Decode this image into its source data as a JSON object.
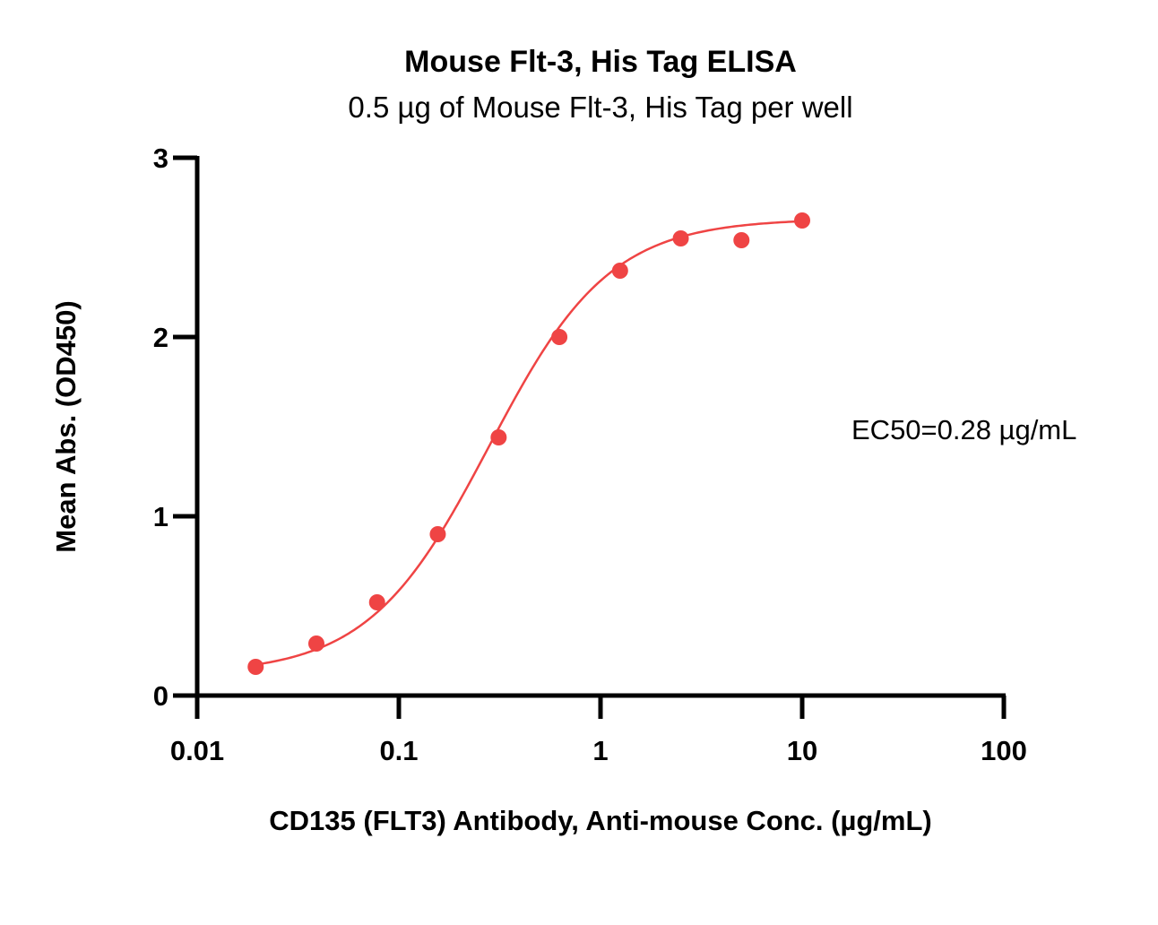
{
  "chart_data": {
    "type": "scatter",
    "title": "Mouse Flt-3, His Tag ELISA",
    "subtitle": "0.5 µg of Mouse Flt-3, His Tag per well",
    "xlabel": "CD135 (FLT3) Antibody, Anti-mouse Conc. (µg/mL)",
    "ylabel": "Mean Abs. (OD450)",
    "x_scale": "log",
    "xlim": [
      0.01,
      100
    ],
    "ylim": [
      0,
      3
    ],
    "x_ticks": [
      "0.01",
      "0.1",
      "1",
      "10",
      "100"
    ],
    "x_tick_values": [
      0.01,
      0.1,
      1,
      10,
      100
    ],
    "y_ticks": [
      "0",
      "1",
      "2",
      "3"
    ],
    "y_tick_values": [
      0,
      1,
      2,
      3
    ],
    "grid": false,
    "legend": "none",
    "annotation": "EC50=0.28 µg/mL",
    "series": [
      {
        "color": "#ef4444",
        "marker": "circle",
        "x": [
          0.0195,
          0.039,
          0.078,
          0.156,
          0.3125,
          0.625,
          1.25,
          2.5,
          5,
          10
        ],
        "y": [
          0.16,
          0.29,
          0.52,
          0.9,
          1.44,
          2.0,
          2.37,
          2.55,
          2.54,
          2.65
        ]
      }
    ],
    "fit": {
      "type": "4PL",
      "bottom": 0.12,
      "top": 2.66,
      "ec50": 0.28,
      "hill": 1.45,
      "color": "#ef4444"
    }
  }
}
